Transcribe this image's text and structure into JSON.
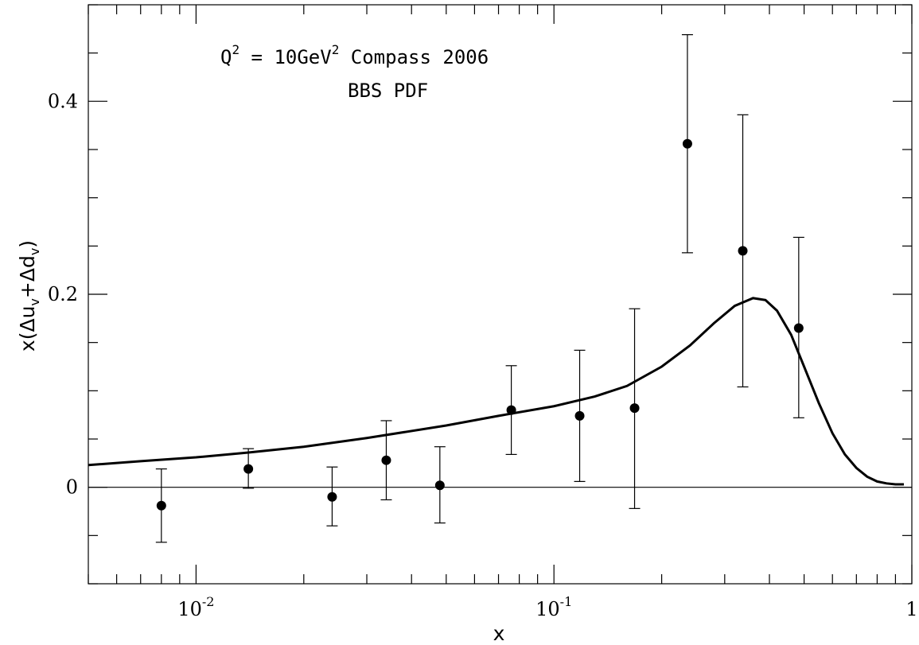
{
  "chart_data": {
    "type": "scatter",
    "xscale": "log",
    "xlim": [
      0.005,
      1.0
    ],
    "ylim": [
      -0.1,
      0.5
    ],
    "xlabel": "x",
    "ylabel": {
      "prefix": "x(Δu",
      "sub1": "v",
      "mid": "+Δd",
      "sub2": "v",
      "suffix": ")"
    },
    "x_tick_labels": [
      {
        "x": 0.01,
        "base": "10",
        "exp": "-2"
      },
      {
        "x": 0.1,
        "base": "10",
        "exp": "-1"
      },
      {
        "x": 1.0,
        "base": "1",
        "exp": ""
      }
    ],
    "y_tick_labels": [
      {
        "y": 0.0,
        "label": "0"
      },
      {
        "y": 0.2,
        "label": "0.2"
      },
      {
        "y": 0.4,
        "label": "0.4"
      }
    ],
    "reference_line_y": 0.0,
    "annotations": {
      "line1": {
        "q": "Q",
        "q_exp": "2",
        "eq": " = 10GeV",
        "gev_exp": "2",
        "rest": "  Compass 2006"
      },
      "line2": "BBS PDF"
    },
    "points": [
      {
        "x": 0.008,
        "y": -0.019,
        "err_low": 0.038,
        "err_high": 0.038
      },
      {
        "x": 0.014,
        "y": 0.019,
        "err_low": 0.02,
        "err_high": 0.021
      },
      {
        "x": 0.024,
        "y": -0.01,
        "err_low": 0.03,
        "err_high": 0.031
      },
      {
        "x": 0.034,
        "y": 0.028,
        "err_low": 0.041,
        "err_high": 0.041
      },
      {
        "x": 0.048,
        "y": 0.002,
        "err_low": 0.039,
        "err_high": 0.04
      },
      {
        "x": 0.076,
        "y": 0.08,
        "err_low": 0.046,
        "err_high": 0.046
      },
      {
        "x": 0.118,
        "y": 0.074,
        "err_low": 0.068,
        "err_high": 0.068
      },
      {
        "x": 0.168,
        "y": 0.082,
        "err_low": 0.104,
        "err_high": 0.103
      },
      {
        "x": 0.236,
        "y": 0.356,
        "err_low": 0.113,
        "err_high": 0.113
      },
      {
        "x": 0.337,
        "y": 0.245,
        "err_low": 0.141,
        "err_high": 0.141
      },
      {
        "x": 0.483,
        "y": 0.165,
        "err_low": 0.093,
        "err_high": 0.094
      }
    ],
    "curve": {
      "name": "BBS PDF",
      "x": [
        0.005,
        0.007,
        0.01,
        0.014,
        0.02,
        0.03,
        0.05,
        0.07,
        0.1,
        0.13,
        0.16,
        0.2,
        0.24,
        0.28,
        0.32,
        0.36,
        0.39,
        0.42,
        0.46,
        0.5,
        0.55,
        0.6,
        0.65,
        0.7,
        0.75,
        0.8,
        0.85,
        0.9,
        0.95
      ],
      "y": [
        0.023,
        0.027,
        0.031,
        0.036,
        0.042,
        0.051,
        0.064,
        0.074,
        0.084,
        0.094,
        0.105,
        0.125,
        0.147,
        0.17,
        0.188,
        0.196,
        0.194,
        0.183,
        0.158,
        0.125,
        0.087,
        0.056,
        0.034,
        0.02,
        0.011,
        0.006,
        0.004,
        0.003,
        0.003
      ]
    }
  }
}
